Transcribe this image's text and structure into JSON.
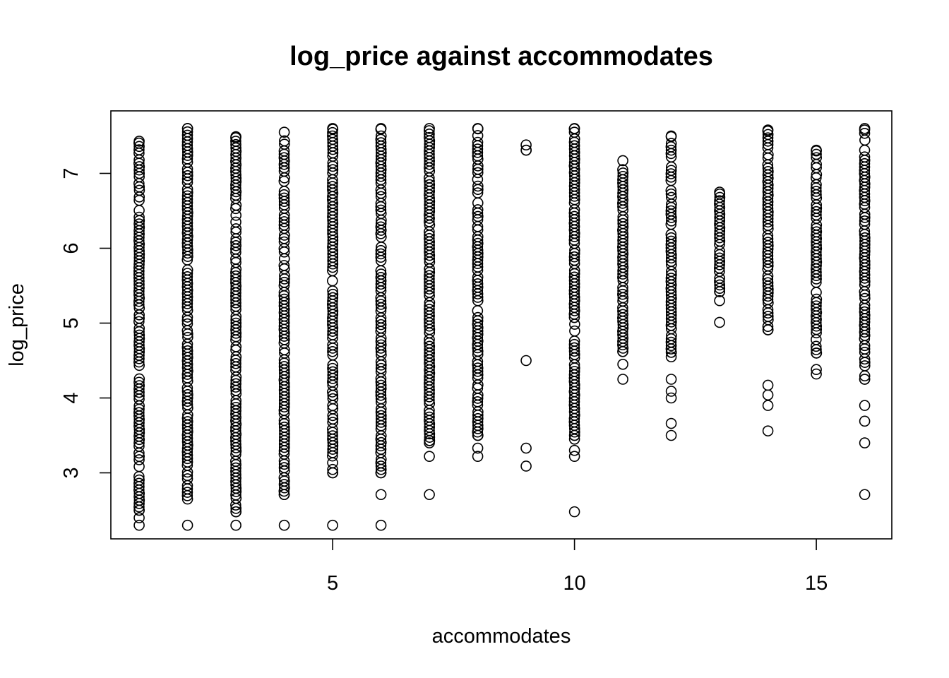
{
  "chart_data": {
    "type": "scatter",
    "title": "log_price against accommodates",
    "xlabel": "accommodates",
    "ylabel": "log_price",
    "xlim": [
      1,
      16
    ],
    "ylim": [
      2.3,
      7.6
    ],
    "x_ticks": [
      5,
      10,
      15
    ],
    "y_ticks": [
      3,
      4,
      5,
      6,
      7
    ],
    "grid": false,
    "legend": "none",
    "point_style": "open-circle",
    "series": [
      {
        "points": [
          {
            "x": 1,
            "y_min": 2.3,
            "y_max": 7.43,
            "outliers": [
              2.3,
              2.4,
              2.5,
              7.43
            ]
          },
          {
            "x": 2,
            "y_min": 2.3,
            "y_max": 7.6,
            "outliers": [
              2.3,
              2.65,
              7.6
            ]
          },
          {
            "x": 3,
            "y_min": 2.3,
            "y_max": 7.49,
            "outliers": [
              2.3,
              2.48,
              7.49
            ]
          },
          {
            "x": 4,
            "y_min": 2.3,
            "y_max": 7.55,
            "outliers": [
              2.3,
              2.71,
              7.55
            ]
          },
          {
            "x": 5,
            "y_min": 2.3,
            "y_max": 7.6,
            "outliers": [
              2.3,
              3.0,
              7.6
            ]
          },
          {
            "x": 6,
            "y_min": 2.3,
            "y_max": 7.6,
            "outliers": [
              2.3,
              2.71,
              3.0,
              7.6
            ]
          },
          {
            "x": 7,
            "y_min": 2.71,
            "y_max": 7.6,
            "outliers": [
              2.71,
              3.22,
              3.4,
              3.43,
              7.6
            ]
          },
          {
            "x": 8,
            "y_min": 3.22,
            "y_max": 7.6,
            "outliers": [
              3.22,
              3.33,
              3.5,
              7.6
            ]
          },
          {
            "x": 9,
            "y_min": 3.09,
            "y_max": 7.38,
            "outliers": [
              3.09,
              3.33,
              4.5,
              7.31,
              7.38
            ]
          },
          {
            "x": 10,
            "y_min": 2.48,
            "y_max": 7.6,
            "outliers": [
              2.48,
              3.22,
              3.3,
              3.45,
              3.5,
              7.6
            ]
          },
          {
            "x": 11,
            "y_min": 4.25,
            "y_max": 7.17,
            "outliers": [
              4.25,
              4.45,
              4.62,
              7.17
            ]
          },
          {
            "x": 12,
            "y_min": 3.5,
            "y_max": 7.5,
            "outliers": [
              3.5,
              3.66,
              4.0,
              4.09,
              4.25,
              4.55,
              4.61,
              7.5
            ]
          },
          {
            "x": 13,
            "y_min": 5.01,
            "y_max": 6.75,
            "outliers": [
              5.01,
              5.3,
              5.42,
              6.75
            ]
          },
          {
            "x": 14,
            "y_min": 3.56,
            "y_max": 7.58,
            "outliers": [
              3.56,
              3.9,
              4.04,
              4.17,
              4.91,
              7.58
            ]
          },
          {
            "x": 15,
            "y_min": 4.32,
            "y_max": 7.31,
            "outliers": [
              4.32,
              4.38,
              4.6,
              7.31
            ]
          },
          {
            "x": 16,
            "y_min": 2.71,
            "y_max": 7.6,
            "outliers": [
              2.71,
              3.4,
              3.69,
              3.9,
              4.25,
              7.6
            ]
          }
        ]
      }
    ]
  }
}
